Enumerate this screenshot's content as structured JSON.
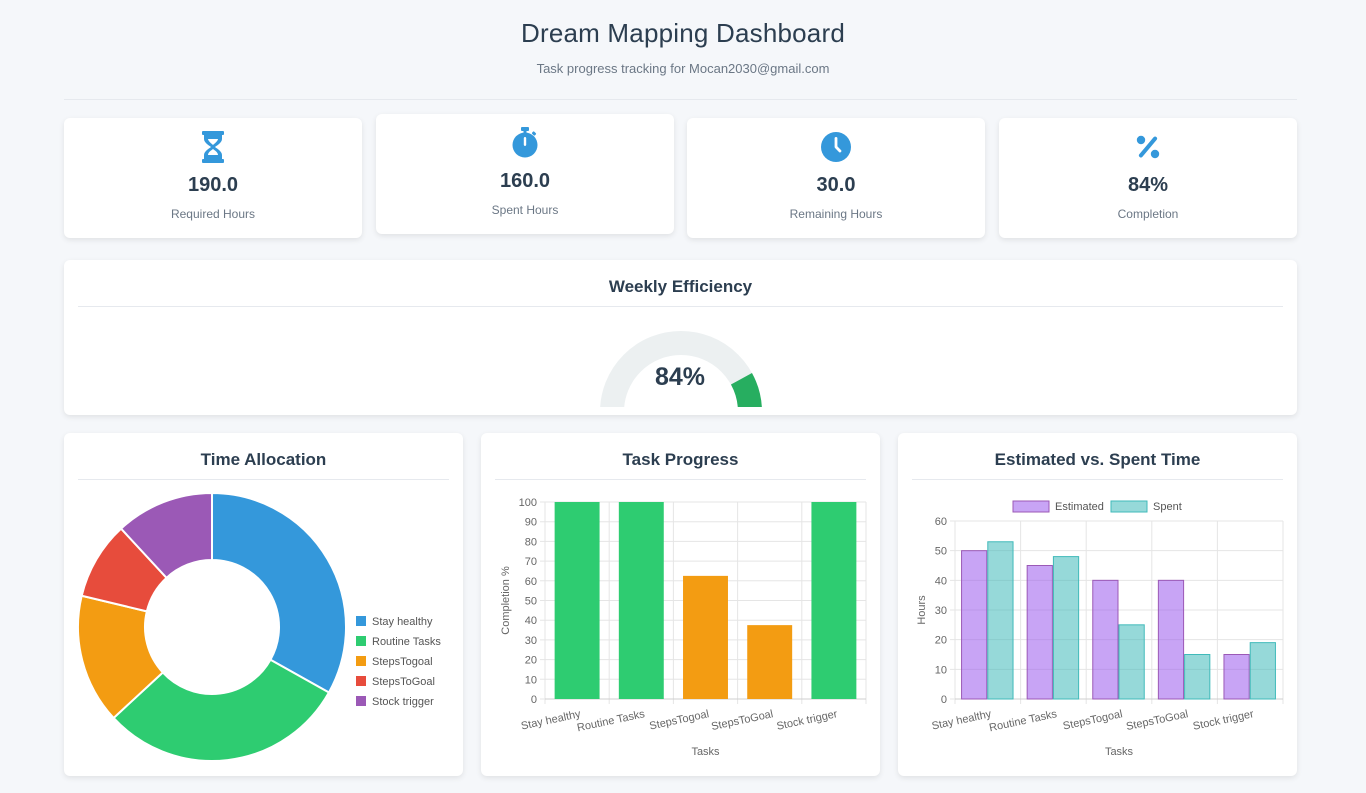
{
  "header": {
    "title": "Dream Mapping Dashboard",
    "subtitle": "Task progress tracking for Mocan2030@gmail.com"
  },
  "stats": [
    {
      "icon": "hourglass-icon",
      "value": "190.0",
      "label": "Required Hours"
    },
    {
      "icon": "stopwatch-icon",
      "value": "160.0",
      "label": "Spent Hours"
    },
    {
      "icon": "clock-icon",
      "value": "30.0",
      "label": "Remaining Hours"
    },
    {
      "icon": "percent-icon",
      "value": "84%",
      "label": "Completion"
    }
  ],
  "efficiency": {
    "title": "Weekly Efficiency",
    "value_text": "84%",
    "value": 84,
    "color": "#27ae60",
    "track_color": "#ecf0f1"
  },
  "colors": {
    "accent": "#3498db",
    "text": "#2c3e50"
  },
  "allocation": {
    "title": "Time Allocation",
    "chart_data": {
      "type": "pie",
      "labels": [
        "Stay healthy",
        "Routine Tasks",
        "StepsTogoal",
        "StepsToGoal",
        "Stock trigger"
      ],
      "values": [
        53,
        48,
        25,
        15,
        19
      ],
      "colors": [
        "#3498db",
        "#2ecc71",
        "#f39c12",
        "#e74c3c",
        "#9b59b6"
      ]
    }
  },
  "progress": {
    "title": "Task Progress",
    "chart_data": {
      "type": "bar",
      "categories": [
        "Stay healthy",
        "Routine Tasks",
        "StepsTogoal",
        "StepsToGoal",
        "Stock trigger"
      ],
      "values": [
        100,
        100,
        62.5,
        37.5,
        100
      ],
      "colors": [
        "#2ecc71",
        "#2ecc71",
        "#f39c12",
        "#f39c12",
        "#2ecc71"
      ],
      "ylim": [
        0,
        100
      ],
      "yticks": [
        0,
        10,
        20,
        30,
        40,
        50,
        60,
        70,
        80,
        90,
        100
      ],
      "xlabel": "Tasks",
      "ylabel": "Completion %",
      "grid": true
    }
  },
  "estimated": {
    "title": "Estimated vs. Spent Time",
    "chart_data": {
      "type": "bar",
      "categories": [
        "Stay healthy",
        "Routine Tasks",
        "StepsTogoal",
        "StepsToGoal",
        "Stock trigger"
      ],
      "series": [
        {
          "name": "Estimated",
          "values": [
            50,
            45,
            40,
            40,
            15
          ],
          "fill": "rgba(155,89,237,0.55)",
          "stroke": "#9b59b6"
        },
        {
          "name": "Spent",
          "values": [
            53,
            48,
            25,
            15,
            19
          ],
          "fill": "rgba(64,186,186,0.55)",
          "stroke": "#40baba"
        }
      ],
      "ylim": [
        0,
        60
      ],
      "yticks": [
        0,
        10,
        20,
        30,
        40,
        50,
        60
      ],
      "xlabel": "Tasks",
      "ylabel": "Hours",
      "grid": true,
      "legend": "top"
    }
  }
}
